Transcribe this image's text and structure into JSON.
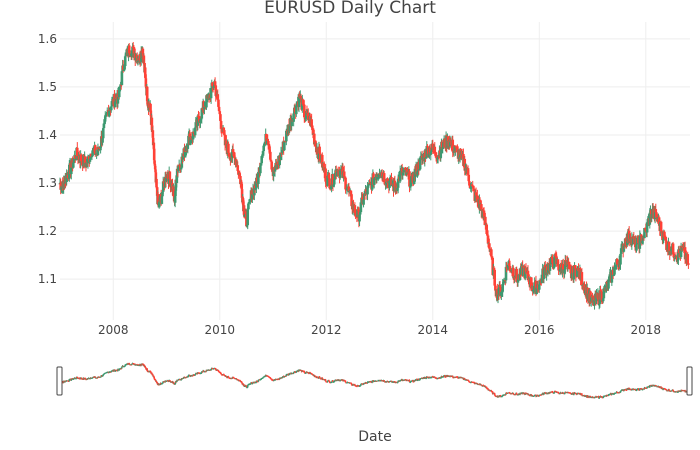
{
  "chart_data": {
    "type": "candlestick",
    "title": "EURUSD Daily Chart",
    "xlabel": "Date",
    "ylabel": "",
    "xlim": [
      2007.0,
      2018.83
    ],
    "ylim": [
      1.015,
      1.635
    ],
    "x_ticks": [
      2008,
      2010,
      2012,
      2014,
      2016,
      2018
    ],
    "x_tick_labels": [
      "2008",
      "2010",
      "2012",
      "2014",
      "2016",
      "2018"
    ],
    "y_ticks": [
      1.1,
      1.2,
      1.3,
      1.4,
      1.5,
      1.6
    ],
    "y_tick_labels": [
      "1.1",
      "1.2",
      "1.3",
      "1.4",
      "1.5",
      "1.6"
    ],
    "grid": true,
    "range_slider": true,
    "colors": {
      "increasing": "#3d9970",
      "decreasing": "#ff4136"
    },
    "series": [
      {
        "x": [
          2007.0,
          2007.05,
          2007.1,
          2007.2,
          2007.3,
          2007.4,
          2007.5,
          2007.6,
          2007.7,
          2007.8,
          2007.9,
          2008.0,
          2008.1,
          2008.2,
          2008.3,
          2008.4,
          2008.5,
          2008.55,
          2008.6,
          2008.65,
          2008.7,
          2008.75,
          2008.8,
          2008.85,
          2008.9,
          2009.0,
          2009.1,
          2009.15,
          2009.2,
          2009.3,
          2009.4,
          2009.5,
          2009.6,
          2009.7,
          2009.8,
          2009.9,
          2010.0,
          2010.1,
          2010.2,
          2010.3,
          2010.4,
          2010.45,
          2010.5,
          2010.6,
          2010.7,
          2010.8,
          2010.9,
          2011.0,
          2011.1,
          2011.2,
          2011.3,
          2011.4,
          2011.5,
          2011.6,
          2011.7,
          2011.8,
          2011.9,
          2012.0,
          2012.1,
          2012.2,
          2012.3,
          2012.4,
          2012.5,
          2012.6,
          2012.7,
          2012.8,
          2012.9,
          2013.0,
          2013.1,
          2013.2,
          2013.3,
          2013.4,
          2013.5,
          2013.6,
          2013.7,
          2013.8,
          2013.9,
          2014.0,
          2014.1,
          2014.2,
          2014.3,
          2014.4,
          2014.5,
          2014.6,
          2014.7,
          2014.8,
          2014.9,
          2015.0,
          2015.1,
          2015.2,
          2015.3,
          2015.4,
          2015.5,
          2015.6,
          2015.7,
          2015.8,
          2015.9,
          2016.0,
          2016.1,
          2016.2,
          2016.3,
          2016.4,
          2016.5,
          2016.6,
          2016.7,
          2016.8,
          2016.9,
          2017.0,
          2017.1,
          2017.2,
          2017.3,
          2017.4,
          2017.5,
          2017.6,
          2017.7,
          2017.8,
          2017.9,
          2018.0,
          2018.1,
          2018.2,
          2018.3,
          2018.4,
          2018.5,
          2018.6,
          2018.7,
          2018.8
        ],
        "y": [
          1.3,
          1.29,
          1.31,
          1.33,
          1.36,
          1.35,
          1.34,
          1.37,
          1.36,
          1.4,
          1.45,
          1.47,
          1.48,
          1.55,
          1.58,
          1.57,
          1.56,
          1.58,
          1.52,
          1.47,
          1.45,
          1.38,
          1.3,
          1.25,
          1.27,
          1.32,
          1.3,
          1.26,
          1.33,
          1.35,
          1.39,
          1.4,
          1.43,
          1.46,
          1.48,
          1.51,
          1.44,
          1.38,
          1.36,
          1.35,
          1.3,
          1.25,
          1.22,
          1.28,
          1.3,
          1.37,
          1.4,
          1.32,
          1.34,
          1.38,
          1.42,
          1.45,
          1.48,
          1.44,
          1.43,
          1.38,
          1.35,
          1.31,
          1.3,
          1.33,
          1.32,
          1.29,
          1.25,
          1.23,
          1.27,
          1.29,
          1.31,
          1.33,
          1.31,
          1.3,
          1.29,
          1.32,
          1.32,
          1.3,
          1.33,
          1.35,
          1.37,
          1.37,
          1.36,
          1.38,
          1.39,
          1.37,
          1.36,
          1.34,
          1.3,
          1.27,
          1.25,
          1.21,
          1.14,
          1.07,
          1.08,
          1.13,
          1.12,
          1.1,
          1.12,
          1.1,
          1.08,
          1.09,
          1.12,
          1.13,
          1.14,
          1.12,
          1.13,
          1.11,
          1.12,
          1.1,
          1.07,
          1.05,
          1.06,
          1.07,
          1.09,
          1.12,
          1.14,
          1.18,
          1.19,
          1.17,
          1.18,
          1.2,
          1.24,
          1.23,
          1.2,
          1.17,
          1.16,
          1.15,
          1.16,
          1.13
        ]
      }
    ]
  }
}
